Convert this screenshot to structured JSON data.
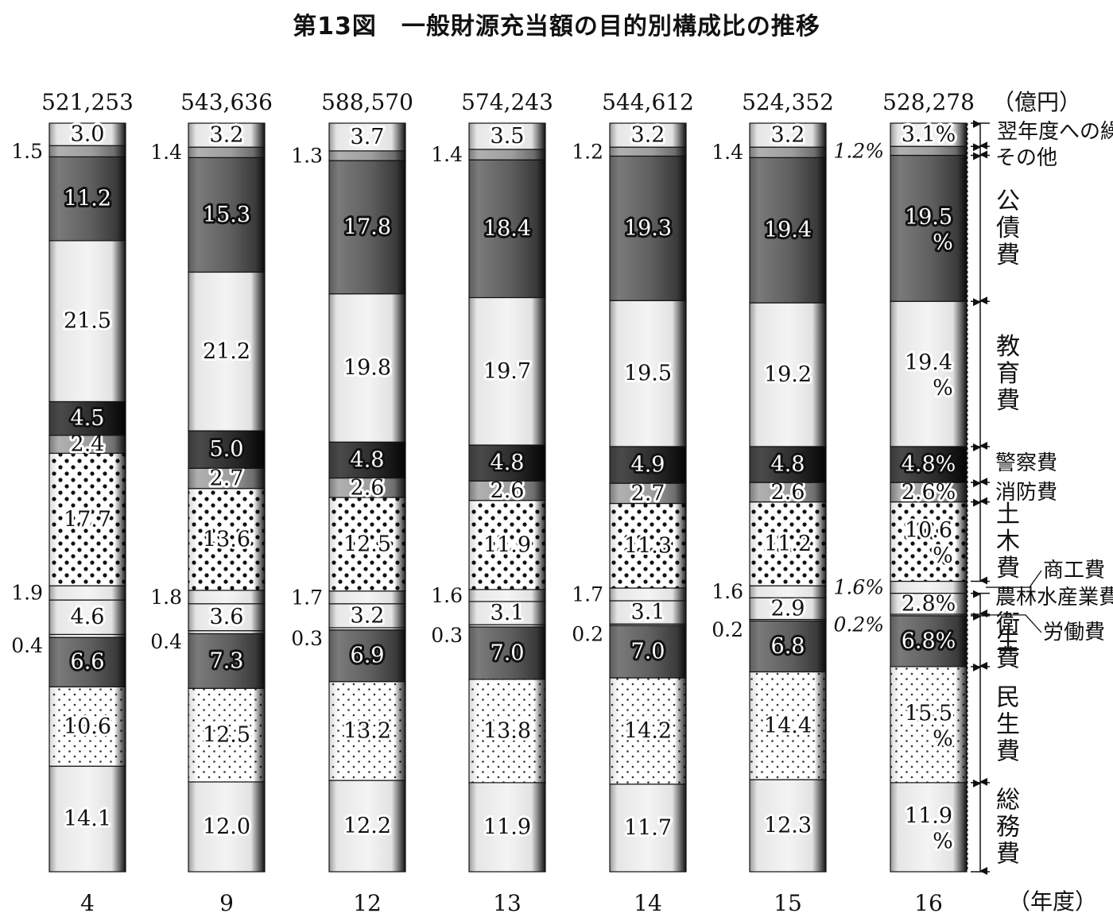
{
  "chart_data": {
    "type": "bar",
    "subtype": "stacked-100-percent",
    "title": "第13図　一般財源充当額の目的別構成比の推移",
    "unit_total": "（億円）",
    "unit_x": "（年度）",
    "categories": [
      "4",
      "9",
      "12",
      "13",
      "14",
      "15",
      "16"
    ],
    "totals": [
      "521,253",
      "543,636",
      "588,570",
      "574,243",
      "544,612",
      "524,352",
      "528,278"
    ],
    "series": [
      {
        "name": "総務費",
        "pattern": "light",
        "values": [
          14.1,
          12.0,
          12.2,
          11.9,
          11.7,
          12.3,
          11.9
        ],
        "labels": [
          "14.1",
          "12.0",
          "12.2",
          "11.9",
          "11.7",
          "12.3",
          "11.9"
        ]
      },
      {
        "name": "民生費",
        "pattern": "dots-fine",
        "values": [
          10.6,
          12.5,
          13.2,
          13.8,
          14.2,
          14.4,
          15.5
        ],
        "labels": [
          "10.6",
          "12.5",
          "13.2",
          "13.8",
          "14.2",
          "14.4",
          "15.5"
        ]
      },
      {
        "name": "衛生費",
        "pattern": "dark",
        "values": [
          6.6,
          7.3,
          6.9,
          7.0,
          7.0,
          6.8,
          6.8
        ],
        "labels": [
          "6.6",
          "7.3",
          "6.9",
          "7.0",
          "7.0",
          "6.8",
          "6.8%"
        ]
      },
      {
        "name": "労働費",
        "pattern": "light",
        "values": [
          0.4,
          0.4,
          0.3,
          0.3,
          0.2,
          0.2,
          0.2
        ],
        "labels": [
          "0.4",
          "0.4",
          "0.3",
          "0.3",
          "0.2",
          "0.2",
          "0.2%"
        ]
      },
      {
        "name": "農林水産業費",
        "pattern": "light",
        "values": [
          4.6,
          3.6,
          3.2,
          3.1,
          3.1,
          2.9,
          2.8
        ],
        "labels": [
          "4.6",
          "3.6",
          "3.2",
          "3.1",
          "3.1",
          "2.9",
          "2.8%"
        ]
      },
      {
        "name": "商工費",
        "pattern": "light",
        "values": [
          1.9,
          1.8,
          1.7,
          1.6,
          1.7,
          1.6,
          1.6
        ],
        "labels": [
          "1.9",
          "1.8",
          "1.7",
          "1.6",
          "1.7",
          "1.6",
          "1.6%"
        ]
      },
      {
        "name": "土木費",
        "pattern": "dots-bold",
        "values": [
          17.7,
          13.6,
          12.5,
          11.9,
          11.3,
          11.2,
          10.6
        ],
        "labels": [
          "17.7",
          "13.6",
          "12.5",
          "11.9",
          "11.3",
          "11.2",
          "10.6"
        ]
      },
      {
        "name": "消防費",
        "pattern": "medium",
        "values": [
          2.4,
          2.7,
          2.6,
          2.6,
          2.7,
          2.6,
          2.6
        ],
        "labels": [
          "2.4",
          "2.7",
          "2.6",
          "2.6",
          "2.7",
          "2.6",
          "2.6%"
        ]
      },
      {
        "name": "警察費",
        "pattern": "darkest",
        "values": [
          4.5,
          5.0,
          4.8,
          4.8,
          4.9,
          4.8,
          4.8
        ],
        "labels": [
          "4.5",
          "5.0",
          "4.8",
          "4.8",
          "4.9",
          "4.8",
          "4.8%"
        ]
      },
      {
        "name": "教育費",
        "pattern": "light",
        "values": [
          21.5,
          21.2,
          19.8,
          19.7,
          19.5,
          19.2,
          19.4
        ],
        "labels": [
          "21.5",
          "21.2",
          "19.8",
          "19.7",
          "19.5",
          "19.2",
          "19.4"
        ]
      },
      {
        "name": "公債費",
        "pattern": "dark",
        "values": [
          11.2,
          15.3,
          17.8,
          18.4,
          19.3,
          19.4,
          19.5
        ],
        "labels": [
          "11.2",
          "15.3",
          "17.8",
          "18.4",
          "19.3",
          "19.4",
          "19.5"
        ]
      },
      {
        "name": "その他",
        "pattern": "medium",
        "values": [
          1.5,
          1.4,
          1.3,
          1.4,
          1.2,
          1.4,
          1.2
        ],
        "labels": [
          "1.5",
          "1.4",
          "1.3",
          "1.4",
          "1.2",
          "1.4",
          "1.2%"
        ]
      },
      {
        "name": "翌年度への繰越額",
        "pattern": "light",
        "values": [
          3.0,
          3.2,
          3.7,
          3.5,
          3.2,
          3.2,
          3.1
        ],
        "labels": [
          "3.0",
          "3.2",
          "3.7",
          "3.5",
          "3.2",
          "3.2",
          "3.1%"
        ]
      }
    ],
    "percent_mark": "%",
    "legend_names_vertical": [
      "公債費",
      "教育費",
      "土木費",
      "民生費",
      "総務費"
    ],
    "legend_names_horizontal": [
      "翌年度への繰越額",
      "その他",
      "警察費",
      "消防費",
      "商工費",
      "農林水産業費",
      "労働費",
      "衛生費"
    ]
  }
}
